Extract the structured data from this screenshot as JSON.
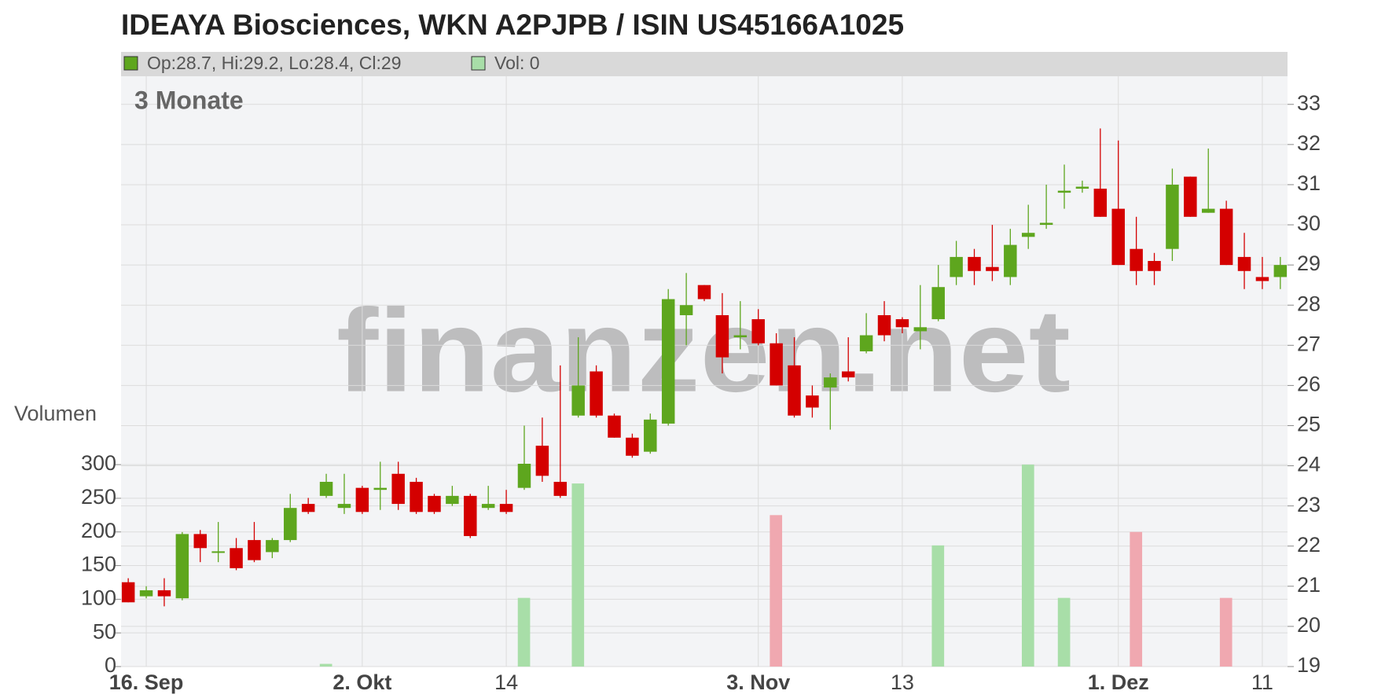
{
  "chart_data": {
    "type": "candlestick",
    "title": "IDEAYA Biosciences, WKN A2PJPB / ISIN US45166A1025",
    "legend": [
      "Op:28.7, Hi:29.2, Lo:28.4, Cl:29",
      "Vol: 0"
    ],
    "period": "3 Monate",
    "y2_label": "Volumen",
    "watermark": "finanzen.net",
    "categories": [
      null,
      "16. Sep",
      null,
      null,
      null,
      null,
      null,
      null,
      null,
      null,
      null,
      null,
      null,
      "2. Okt",
      null,
      null,
      null,
      null,
      null,
      null,
      null,
      "14",
      null,
      null,
      null,
      null,
      null,
      null,
      null,
      null,
      null,
      null,
      null,
      null,
      null,
      "3. Nov",
      null,
      null,
      null,
      null,
      null,
      null,
      null,
      "13",
      null,
      null,
      null,
      null,
      null,
      null,
      null,
      null,
      null,
      null,
      null,
      "1. Dez",
      null,
      null,
      null,
      null,
      null,
      null,
      null,
      "11",
      null
    ],
    "open": [
      21.1,
      20.75,
      20.9,
      20.7,
      22.3,
      21.83,
      21.95,
      22.15,
      21.85,
      22.15,
      23.05,
      23.25,
      22.95,
      23.45,
      23.4,
      23.8,
      23.6,
      23.25,
      23.05,
      23.25,
      22.95,
      23.05,
      23.45,
      24.5,
      23.6,
      25.25,
      26.35,
      25.25,
      24.7,
      24.35,
      25.05,
      27.75,
      28.5,
      27.75,
      27.2,
      27.65,
      27.05,
      26.5,
      25.75,
      25.95,
      26.35,
      26.85,
      27.75,
      27.65,
      27.35,
      27.65,
      28.7,
      29.2,
      28.95,
      28.7,
      29.7,
      30.0,
      30.8,
      30.9,
      30.9,
      30.4,
      29.4,
      29.1,
      29.4,
      31.2,
      30.3,
      30.4,
      29.2,
      28.7,
      28.7
    ],
    "high": [
      21.2,
      21.0,
      21.2,
      22.35,
      22.4,
      22.6,
      22.2,
      22.6,
      22.2,
      23.3,
      23.2,
      23.8,
      23.8,
      23.5,
      24.1,
      24.1,
      23.7,
      23.3,
      23.5,
      23.3,
      23.5,
      23.4,
      25.0,
      25.2,
      26.5,
      27.2,
      26.5,
      25.3,
      24.8,
      25.3,
      28.4,
      28.8,
      28.5,
      28.3,
      28.1,
      27.9,
      27.3,
      27.2,
      26.0,
      26.3,
      27.2,
      27.8,
      28.1,
      27.7,
      28.5,
      29.0,
      29.6,
      29.4,
      30.0,
      29.9,
      30.5,
      31.0,
      31.5,
      31.1,
      32.4,
      32.1,
      30.2,
      29.3,
      31.4,
      31.2,
      31.9,
      30.6,
      29.8,
      29.2,
      29.2
    ],
    "low": [
      20.6,
      20.7,
      20.5,
      20.65,
      21.6,
      21.6,
      21.4,
      21.6,
      21.7,
      22.1,
      22.8,
      23.2,
      22.8,
      22.8,
      22.9,
      22.9,
      22.8,
      22.8,
      23.0,
      22.2,
      22.9,
      22.8,
      23.4,
      23.6,
      23.2,
      25.2,
      25.2,
      24.7,
      24.2,
      24.3,
      25.0,
      27.0,
      28.1,
      26.3,
      26.9,
      27.0,
      26.0,
      25.2,
      25.2,
      24.9,
      26.1,
      26.8,
      27.1,
      27.3,
      26.9,
      27.6,
      28.5,
      28.5,
      28.6,
      28.5,
      29.4,
      29.9,
      30.4,
      30.8,
      30.2,
      29.0,
      28.5,
      28.5,
      29.1,
      30.2,
      30.3,
      29.0,
      28.4,
      28.4,
      28.4
    ],
    "close": [
      20.6,
      20.9,
      20.75,
      22.3,
      21.95,
      21.87,
      21.45,
      21.65,
      22.15,
      22.95,
      22.85,
      23.6,
      23.05,
      22.85,
      23.45,
      23.05,
      22.85,
      22.85,
      23.25,
      22.25,
      23.05,
      22.85,
      24.05,
      23.75,
      23.25,
      26.0,
      25.25,
      24.7,
      24.25,
      25.15,
      28.15,
      28.0,
      28.15,
      26.7,
      27.25,
      27.05,
      26.0,
      25.25,
      25.45,
      26.2,
      26.2,
      27.25,
      27.25,
      27.45,
      27.45,
      28.45,
      29.2,
      28.85,
      28.85,
      29.5,
      29.8,
      30.05,
      30.85,
      30.95,
      30.2,
      29.0,
      28.85,
      28.85,
      31.0,
      30.2,
      30.4,
      29.0,
      28.85,
      28.6,
      29.0
    ],
    "volume": [
      0,
      0,
      0,
      0,
      0,
      0,
      0,
      0,
      0,
      0,
      0,
      4,
      0,
      0,
      0,
      0,
      0,
      0,
      0,
      0,
      0,
      0,
      102,
      0,
      0,
      272,
      0,
      0,
      0,
      0,
      0,
      0,
      0,
      0,
      0,
      0,
      225,
      0,
      0,
      0,
      0,
      0,
      0,
      0,
      0,
      180,
      0,
      0,
      0,
      0,
      300,
      0,
      102,
      0,
      0,
      0,
      200,
      0,
      0,
      0,
      0,
      102,
      0,
      0,
      0
    ],
    "up_color": "#5ea61e",
    "down_color": "#d40000",
    "up_volume_color": "#a8dea8",
    "down_volume_color": "#f0a8b0",
    "ylim": [
      19,
      33.7
    ],
    "yticks": [
      19,
      20,
      21,
      22,
      23,
      24,
      25,
      26,
      27,
      28,
      29,
      30,
      31,
      32,
      33
    ],
    "y2lim": [
      0,
      877
    ],
    "y2ticks": [
      0,
      50,
      100,
      150,
      200,
      250,
      300
    ],
    "grid": true
  }
}
